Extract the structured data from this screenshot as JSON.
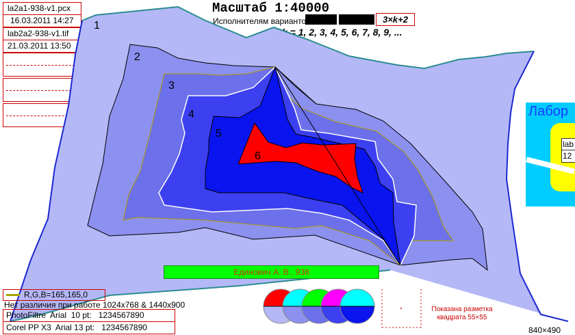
{
  "files": [
    {
      "name": "la2a1-938-v1.pcx",
      "date": "16.03.2011 14:27"
    },
    {
      "name": "lab2a2-938-v1.tif",
      "date": "21.03.2011 13:50"
    }
  ],
  "header": {
    "title": "Масштаб 1:40000",
    "variants_label": "Исполнителям вариантов",
    "formula": "3×k+2",
    "k_sequence": "k = 1, 2, 3, 4, 5, 6, 7, 8, 9, ..."
  },
  "zones": [
    {
      "label": "1",
      "color": "#b4b8f6"
    },
    {
      "label": "2",
      "color": "#8c90ee"
    },
    {
      "label": "3",
      "color": "#6c70ea"
    },
    {
      "label": "4",
      "color": "#3c40f0"
    },
    {
      "label": "5",
      "color": "#0a14ee"
    },
    {
      "label": "6",
      "color": "#ff0000"
    }
  ],
  "author": "Единович А. В., 938",
  "legend": {
    "rgb_text": "R,G,B=165,165,0",
    "line_color": "#a5a500"
  },
  "note_resolution": "Нет различия при работе 1024x768  & 1440x900",
  "fonts_info": [
    {
      "label": "PhotoFiltre  Arial  10 pt:",
      "value": "1234567890"
    },
    {
      "label": "Corel PP X3  Arial 13 pt:",
      "value": "1234567890"
    }
  ],
  "grid_note": {
    "line1": "Показана разметка",
    "line2": "квадрата 55×55"
  },
  "inset": {
    "title": "Лабор",
    "label1": "lab",
    "label2": "12"
  },
  "size_label": "840×490",
  "circle_colors": [
    {
      "top": "#ff0000",
      "bottom": "#b4b8f6"
    },
    {
      "top": "#00ffff",
      "bottom": "#8c90ee"
    },
    {
      "top": "#00ff00",
      "bottom": "#6c70ea"
    },
    {
      "top": "#ff00ff",
      "bottom": "#3c40f0"
    },
    {
      "top": "#00ffff",
      "bottom": "#0a14ee"
    }
  ]
}
